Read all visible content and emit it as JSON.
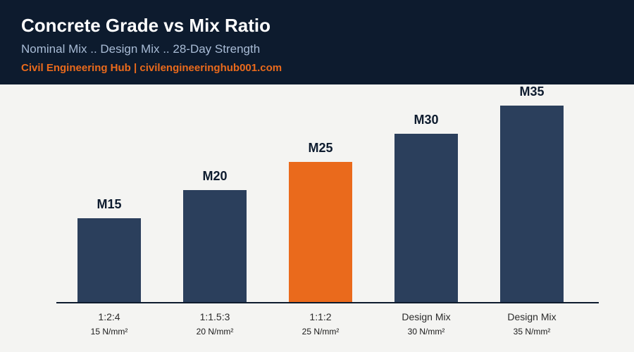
{
  "header": {
    "title": "Concrete Grade vs Mix Ratio",
    "subtitle": "Nominal Mix .. Design Mix .. 28-Day Strength",
    "brand": "Civil Engineering Hub | civilengineeringhub001.com"
  },
  "colors": {
    "header_bg": "#0d1b2e",
    "bar": "#2b3f5c",
    "highlight": "#ea6a1c",
    "axis": "#0d1b2e"
  },
  "chart_data": {
    "type": "bar",
    "title": "Concrete Grade vs Mix Ratio",
    "subtitle": "Nominal Mix .. Design Mix .. 28-Day Strength",
    "xlabel": "",
    "ylabel": "",
    "categories": [
      "1:2:4",
      "1:1.5:3",
      "1:1:2",
      "Design Mix",
      "Design Mix"
    ],
    "strength_labels": [
      "15 N/mm²",
      "20 N/mm²",
      "25 N/mm²",
      "30 N/mm²",
      "35 N/mm²"
    ],
    "bar_labels": [
      "M15",
      "M20",
      "M25",
      "M30",
      "M35"
    ],
    "values": [
      15,
      20,
      25,
      30,
      35
    ],
    "ylim": [
      0,
      35.5
    ],
    "highlight_index": 2,
    "grid": false,
    "legend": "none"
  }
}
